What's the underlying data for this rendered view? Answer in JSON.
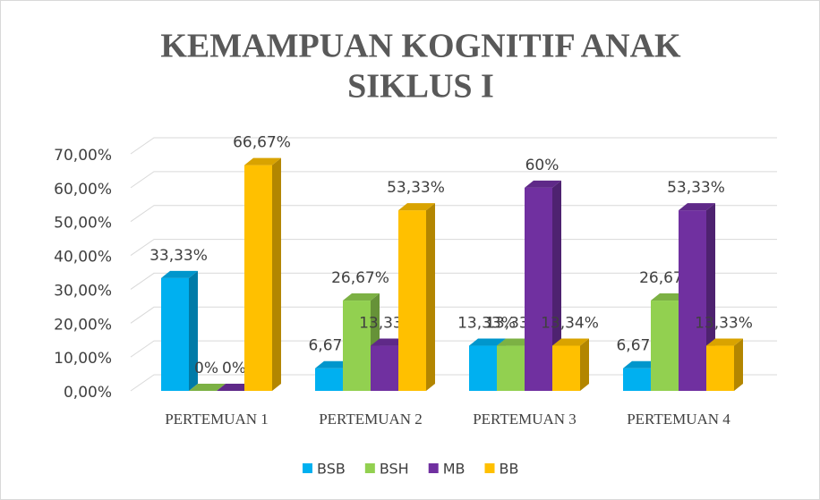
{
  "chart_data": {
    "type": "bar3d",
    "title": [
      "KEMAMPUAN KOGNITIF ANAK",
      "SIKLUS I"
    ],
    "categories": [
      "PERTEMUAN 1",
      "PERTEMUAN 2",
      "PERTEMUAN 3",
      "PERTEMUAN 4"
    ],
    "series": [
      {
        "name": "BSB",
        "color": "#00b0f0",
        "values": [
          33.33,
          6.67,
          13.33,
          6.67
        ],
        "value_labels": [
          "33,33%",
          "6,67%",
          "13,33%",
          "6,67%"
        ]
      },
      {
        "name": "BSH",
        "color": "#92d050",
        "values": [
          0,
          26.67,
          13.33,
          26.67
        ],
        "value_labels": [
          "0%",
          "26,67%",
          "13,33%",
          "26,67%"
        ]
      },
      {
        "name": "MB",
        "color": "#7030a0",
        "values": [
          0,
          13.33,
          60,
          53.33
        ],
        "value_labels": [
          "0%",
          "13,33%",
          "60%",
          "53,33%"
        ]
      },
      {
        "name": "BB",
        "color": "#ffc000",
        "values": [
          66.67,
          53.33,
          13.34,
          13.33
        ],
        "value_labels": [
          "66,67%",
          "53,33%",
          "13,34%",
          "13,33%"
        ]
      }
    ],
    "ylim": [
      0,
      70
    ],
    "yticks": [
      {
        "value": 0,
        "label": "0,00%"
      },
      {
        "value": 10,
        "label": "10,00%"
      },
      {
        "value": 20,
        "label": "20,00%"
      },
      {
        "value": 30,
        "label": "30,00%"
      },
      {
        "value": 40,
        "label": "40,00%"
      },
      {
        "value": 50,
        "label": "50,00%"
      },
      {
        "value": 60,
        "label": "60,00%"
      },
      {
        "value": 70,
        "label": "70,00%"
      }
    ],
    "grid": true,
    "legend": "bottom"
  }
}
